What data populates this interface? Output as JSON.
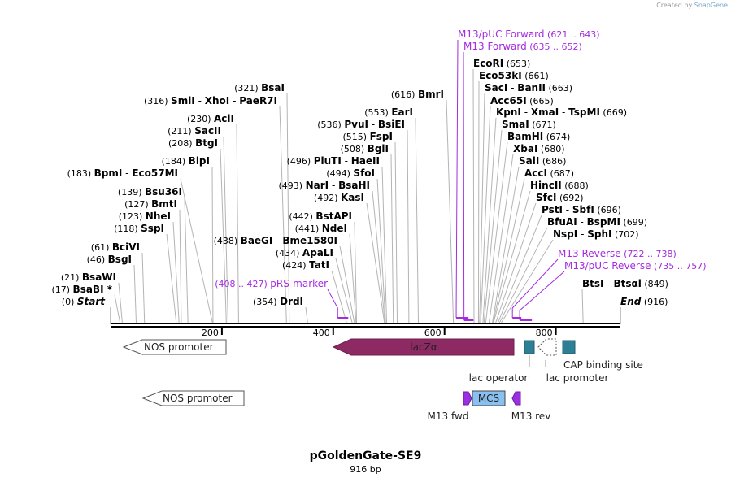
{
  "credit": {
    "prefix": "Created by",
    "brand": "SnapGene"
  },
  "plasmid": {
    "name": "pGoldenGate-SE9",
    "length_label": "916 bp"
  },
  "ruler": {
    "ticks": [
      {
        "pos": 200,
        "label": "200"
      },
      {
        "pos": 400,
        "label": "400"
      },
      {
        "pos": 600,
        "label": "600"
      },
      {
        "pos": 800,
        "label": "800"
      }
    ]
  },
  "ends": {
    "start": {
      "pos": 0,
      "pos_label": "(0)",
      "name": "Start"
    },
    "end": {
      "pos": 916,
      "pos_label": "(916)",
      "name": "End"
    }
  },
  "sites": [
    {
      "pos": 17,
      "parts": [
        {
          "pos_label": "(17)",
          "name": "BsaBI *"
        }
      ]
    },
    {
      "pos": 21,
      "parts": [
        {
          "pos_label": "(21)",
          "name": "BsaWI"
        }
      ]
    },
    {
      "pos": 46,
      "parts": [
        {
          "pos_label": "(46)",
          "name": "BsgI"
        }
      ]
    },
    {
      "pos": 61,
      "parts": [
        {
          "pos_label": "(61)",
          "name": "BciVI"
        }
      ]
    },
    {
      "pos": 118,
      "parts": [
        {
          "pos_label": "(118)",
          "name": "SspI"
        }
      ]
    },
    {
      "pos": 123,
      "parts": [
        {
          "pos_label": "(123)",
          "name": "NheI"
        }
      ]
    },
    {
      "pos": 127,
      "parts": [
        {
          "pos_label": "(127)",
          "name": "BmtI"
        }
      ]
    },
    {
      "pos": 139,
      "parts": [
        {
          "pos_label": "(139)",
          "name": "Bsu36I"
        }
      ]
    },
    {
      "pos": 183,
      "parts": [
        {
          "pos_label": "(183)",
          "name": "BpmI"
        },
        {
          "name": "Eco57MI"
        }
      ]
    },
    {
      "pos": 184,
      "parts": [
        {
          "pos_label": "(184)",
          "name": "BlpI"
        }
      ]
    },
    {
      "pos": 208,
      "parts": [
        {
          "pos_label": "(208)",
          "name": "BtgI"
        }
      ]
    },
    {
      "pos": 211,
      "parts": [
        {
          "pos_label": "(211)",
          "name": "SacII"
        }
      ]
    },
    {
      "pos": 230,
      "parts": [
        {
          "pos_label": "(230)",
          "name": "AclI"
        }
      ]
    },
    {
      "pos": 316,
      "parts": [
        {
          "pos_label": "(316)",
          "name": "SmlI"
        },
        {
          "name": "XhoI"
        },
        {
          "name": "PaeR7I"
        }
      ]
    },
    {
      "pos": 321,
      "parts": [
        {
          "pos_label": "(321)",
          "name": "BsaI"
        }
      ]
    },
    {
      "pos": 354,
      "parts": [
        {
          "pos_label": "(354)",
          "name": "DrdI"
        }
      ]
    },
    {
      "pos": 424,
      "parts": [
        {
          "pos_label": "(424)",
          "name": "TatI"
        }
      ]
    },
    {
      "pos": 434,
      "parts": [
        {
          "pos_label": "(434)",
          "name": "ApaLI"
        }
      ]
    },
    {
      "pos": 438,
      "parts": [
        {
          "pos_label": "(438)",
          "name": "BaeGI"
        },
        {
          "name": "Bme1580I"
        }
      ]
    },
    {
      "pos": 441,
      "parts": [
        {
          "pos_label": "(441)",
          "name": "NdeI"
        }
      ]
    },
    {
      "pos": 442,
      "parts": [
        {
          "pos_label": "(442)",
          "name": "BstAPI"
        }
      ]
    },
    {
      "pos": 492,
      "parts": [
        {
          "pos_label": "(492)",
          "name": "KasI"
        }
      ]
    },
    {
      "pos": 493,
      "parts": [
        {
          "pos_label": "(493)",
          "name": "NarI"
        },
        {
          "name": "BsaHI"
        }
      ]
    },
    {
      "pos": 494,
      "parts": [
        {
          "pos_label": "(494)",
          "name": "SfoI"
        }
      ]
    },
    {
      "pos": 496,
      "parts": [
        {
          "pos_label": "(496)",
          "name": "PluTI"
        },
        {
          "name": "HaeII"
        }
      ]
    },
    {
      "pos": 508,
      "parts": [
        {
          "pos_label": "(508)",
          "name": "BglI"
        }
      ]
    },
    {
      "pos": 515,
      "parts": [
        {
          "pos_label": "(515)",
          "name": "FspI"
        }
      ]
    },
    {
      "pos": 536,
      "parts": [
        {
          "pos_label": "(536)",
          "name": "PvuI"
        },
        {
          "name": "BsiEI"
        }
      ]
    },
    {
      "pos": 553,
      "parts": [
        {
          "pos_label": "(553)",
          "name": "EarI"
        }
      ]
    },
    {
      "pos": 616,
      "parts": [
        {
          "pos_label": "(616)",
          "name": "BmrI"
        }
      ]
    },
    {
      "pos": 653,
      "parts": [
        {
          "name": "EcoRI",
          "pos_label": "(653)"
        }
      ]
    },
    {
      "pos": 661,
      "parts": [
        {
          "name": "Eco53kI",
          "pos_label": "(661)"
        }
      ]
    },
    {
      "pos": 663,
      "parts": [
        {
          "name": "SacI"
        },
        {
          "name": "BanII",
          "pos_label": "(663)"
        }
      ]
    },
    {
      "pos": 665,
      "parts": [
        {
          "name": "Acc65I",
          "pos_label": "(665)"
        }
      ]
    },
    {
      "pos": 669,
      "parts": [
        {
          "name": "KpnI"
        },
        {
          "name": "XmaI"
        },
        {
          "name": "TspMI",
          "pos_label": "(669)"
        }
      ]
    },
    {
      "pos": 671,
      "parts": [
        {
          "name": "SmaI",
          "pos_label": "(671)"
        }
      ]
    },
    {
      "pos": 674,
      "parts": [
        {
          "name": "BamHI",
          "pos_label": "(674)"
        }
      ]
    },
    {
      "pos": 680,
      "parts": [
        {
          "name": "XbaI",
          "pos_label": "(680)"
        }
      ]
    },
    {
      "pos": 686,
      "parts": [
        {
          "name": "SalI",
          "pos_label": "(686)"
        }
      ]
    },
    {
      "pos": 687,
      "parts": [
        {
          "name": "AccI",
          "pos_label": "(687)"
        }
      ]
    },
    {
      "pos": 688,
      "parts": [
        {
          "name": "HincII",
          "pos_label": "(688)"
        }
      ]
    },
    {
      "pos": 692,
      "parts": [
        {
          "name": "SfcI",
          "pos_label": "(692)"
        }
      ]
    },
    {
      "pos": 696,
      "parts": [
        {
          "name": "PstI"
        },
        {
          "name": "SbfI",
          "pos_label": "(696)"
        }
      ]
    },
    {
      "pos": 699,
      "parts": [
        {
          "name": "BfuAI"
        },
        {
          "name": "BspMI",
          "pos_label": "(699)"
        }
      ]
    },
    {
      "pos": 702,
      "parts": [
        {
          "name": "NspI"
        },
        {
          "name": "SphI",
          "pos_label": "(702)"
        }
      ]
    },
    {
      "pos": 849,
      "parts": [
        {
          "name": "BtsI"
        },
        {
          "name": "Btsαl",
          "pos_label": "(849)"
        }
      ]
    }
  ],
  "primers": [
    {
      "name": "M13/pUC Forward",
      "range": "(621 .. 643)",
      "start": 621,
      "end": 643
    },
    {
      "name": "M13 Forward",
      "range": "(635 .. 652)",
      "start": 635,
      "end": 652
    },
    {
      "name": "M13 Reverse",
      "range": "(722 .. 738)",
      "start": 722,
      "end": 738
    },
    {
      "name": "M13/pUC Reverse",
      "range": "(735 .. 757)",
      "start": 735,
      "end": 757
    },
    {
      "name": "pRS-marker",
      "range": "(408 .. 427)",
      "start": 408,
      "end": 427
    }
  ],
  "features": [
    {
      "name": "NOS promoter",
      "kind": "arrow-left",
      "row": 1,
      "color": "#ffffff"
    },
    {
      "name": "lacZα",
      "kind": "arrow-left",
      "row": 1,
      "color": "#8e2a63"
    },
    {
      "name": "lac operator",
      "kind": "box",
      "row": 1,
      "color": "#2e7f93"
    },
    {
      "name": "lac promoter",
      "kind": "arrow-left",
      "row": 1,
      "color": "#ffffff"
    },
    {
      "name": "CAP binding site",
      "kind": "box",
      "row": 1,
      "color": "#2e7f93"
    },
    {
      "name": "NOS promoter",
      "kind": "arrow-left",
      "row": 2,
      "color": "#ffffff"
    },
    {
      "name": "M13 fwd",
      "kind": "primer-right",
      "row": 2,
      "color": "#9b30e0"
    },
    {
      "name": "MCS",
      "kind": "box",
      "row": 2,
      "color": "#8ac0f0"
    },
    {
      "name": "M13 rev",
      "kind": "primer-left",
      "row": 2,
      "color": "#9b30e0"
    }
  ]
}
